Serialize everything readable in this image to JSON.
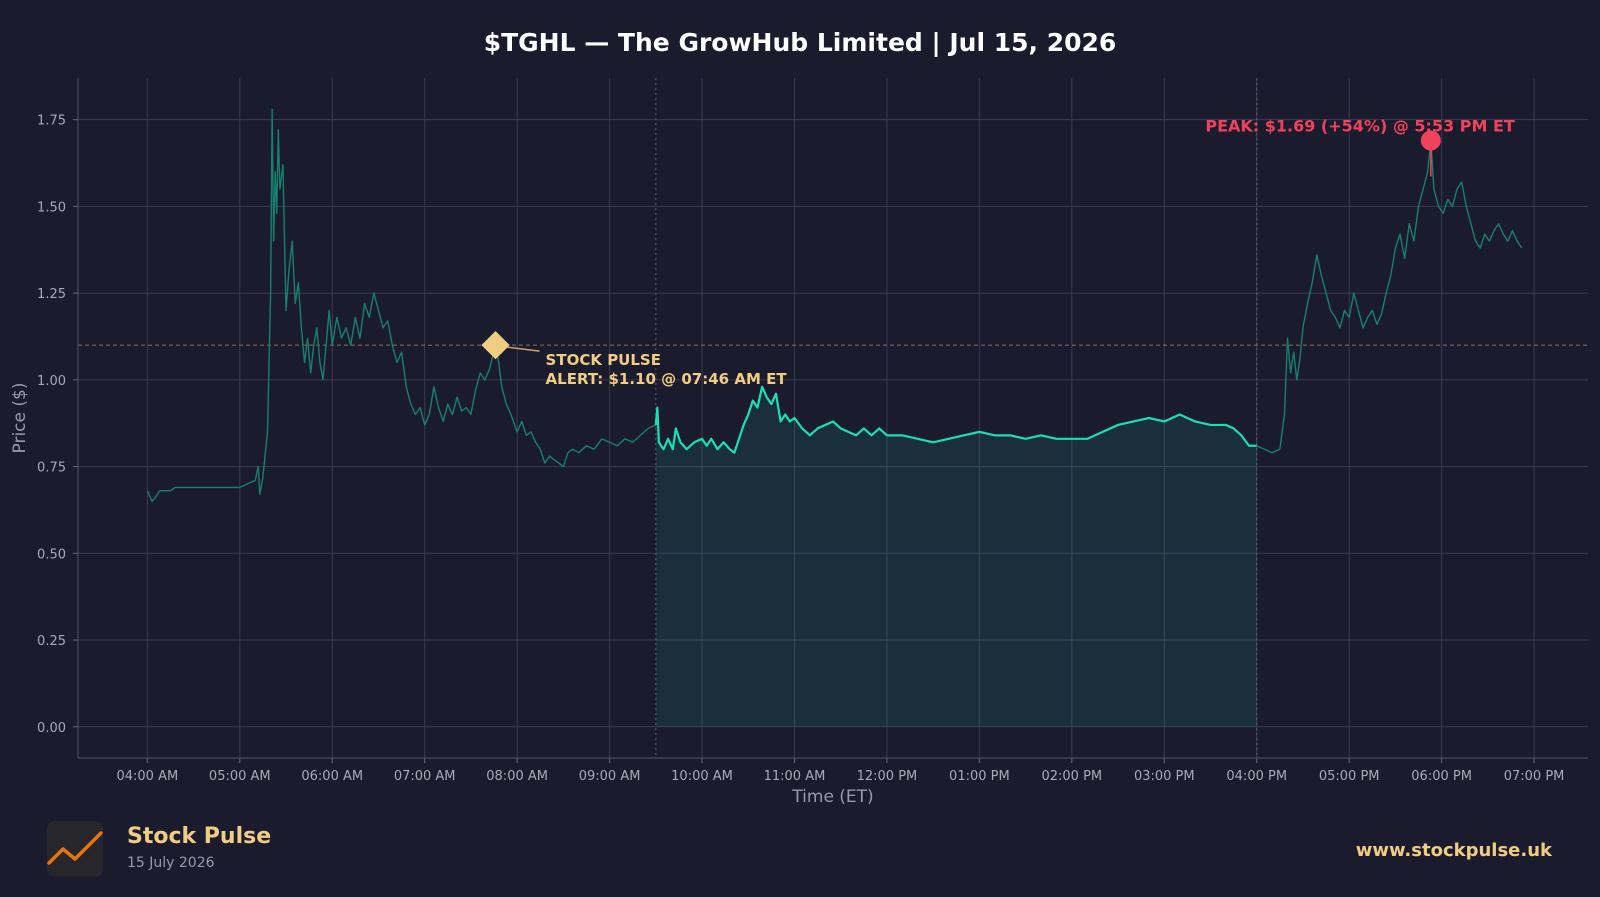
{
  "header": {
    "title": "$TGHL — The GrowHub Limited  |  Jul 15, 2026"
  },
  "footer": {
    "brand": "Stock Pulse",
    "date": "15 July 2026",
    "url": "www.stockpulse.uk",
    "logo_icon": "trend-line-icon"
  },
  "colors": {
    "background": "#1b1b2e",
    "series_regular": "#18e0b4",
    "series_extended": "#16806d",
    "alert": "#f1cd84",
    "peak": "#f0425a",
    "grid": "#3b3b50"
  },
  "chart_data": {
    "type": "line",
    "title": "$TGHL — The GrowHub Limited  |  Jul 15, 2026",
    "xlabel": "Time (ET)",
    "ylabel": "Price ($)",
    "xlim": [
      "03:15 AM",
      "07:35 PM"
    ],
    "ylim": [
      -0.09,
      1.87
    ],
    "grid": true,
    "x_ticks": [
      "04:00 AM",
      "05:00 AM",
      "06:00 AM",
      "07:00 AM",
      "08:00 AM",
      "09:00 AM",
      "10:00 AM",
      "11:00 AM",
      "12:00 PM",
      "01:00 PM",
      "02:00 PM",
      "03:00 PM",
      "04:00 PM",
      "05:00 PM",
      "06:00 PM",
      "07:00 PM"
    ],
    "y_ticks": [
      "0.00",
      "0.25",
      "0.50",
      "0.75",
      "1.00",
      "1.25",
      "1.50",
      "1.75"
    ],
    "regular_session": {
      "start": "09:30 AM",
      "end": "04:00 PM"
    },
    "reference_line": {
      "y": 1.1,
      "style": "dashed"
    },
    "series": [
      {
        "session": "pre-market",
        "points": [
          [
            "04:00 AM",
            0.68
          ],
          [
            "04:03 AM",
            0.65
          ],
          [
            "04:05 AM",
            0.66
          ],
          [
            "04:08 AM",
            0.68
          ],
          [
            "04:15 AM",
            0.68
          ],
          [
            "04:18 AM",
            0.69
          ],
          [
            "04:30 AM",
            0.69
          ],
          [
            "04:45 AM",
            0.69
          ],
          [
            "05:00 AM",
            0.69
          ],
          [
            "05:05 AM",
            0.7
          ],
          [
            "05:10 AM",
            0.71
          ],
          [
            "05:12 AM",
            0.75
          ],
          [
            "05:13 AM",
            0.67
          ],
          [
            "05:15 AM",
            0.72
          ],
          [
            "05:18 AM",
            0.85
          ],
          [
            "05:20 AM",
            1.25
          ],
          [
            "05:21 AM",
            1.78
          ],
          [
            "05:22 AM",
            1.4
          ],
          [
            "05:23 AM",
            1.6
          ],
          [
            "05:24 AM",
            1.48
          ],
          [
            "05:25 AM",
            1.72
          ],
          [
            "05:26 AM",
            1.55
          ],
          [
            "05:28 AM",
            1.62
          ],
          [
            "05:30 AM",
            1.2
          ],
          [
            "05:32 AM",
            1.32
          ],
          [
            "05:34 AM",
            1.4
          ],
          [
            "05:36 AM",
            1.22
          ],
          [
            "05:38 AM",
            1.28
          ],
          [
            "05:40 AM",
            1.15
          ],
          [
            "05:42 AM",
            1.05
          ],
          [
            "05:44 AM",
            1.12
          ],
          [
            "05:46 AM",
            1.02
          ],
          [
            "05:48 AM",
            1.1
          ],
          [
            "05:50 AM",
            1.15
          ],
          [
            "05:52 AM",
            1.05
          ],
          [
            "05:54 AM",
            1.0
          ],
          [
            "05:56 AM",
            1.1
          ],
          [
            "05:58 AM",
            1.2
          ],
          [
            "06:00 AM",
            1.1
          ],
          [
            "06:03 AM",
            1.18
          ],
          [
            "06:06 AM",
            1.12
          ],
          [
            "06:09 AM",
            1.15
          ],
          [
            "06:12 AM",
            1.1
          ],
          [
            "06:15 AM",
            1.18
          ],
          [
            "06:18 AM",
            1.12
          ],
          [
            "06:21 AM",
            1.22
          ],
          [
            "06:24 AM",
            1.18
          ],
          [
            "06:27 AM",
            1.25
          ],
          [
            "06:30 AM",
            1.2
          ],
          [
            "06:33 AM",
            1.15
          ],
          [
            "06:36 AM",
            1.17
          ],
          [
            "06:39 AM",
            1.1
          ],
          [
            "06:42 AM",
            1.05
          ],
          [
            "06:45 AM",
            1.08
          ],
          [
            "06:48 AM",
            0.98
          ],
          [
            "06:51 AM",
            0.93
          ],
          [
            "06:54 AM",
            0.9
          ],
          [
            "06:57 AM",
            0.92
          ],
          [
            "07:00 AM",
            0.87
          ],
          [
            "07:03 AM",
            0.9
          ],
          [
            "07:06 AM",
            0.98
          ],
          [
            "07:09 AM",
            0.92
          ],
          [
            "07:12 AM",
            0.88
          ],
          [
            "07:15 AM",
            0.93
          ],
          [
            "07:18 AM",
            0.9
          ],
          [
            "07:21 AM",
            0.95
          ],
          [
            "07:24 AM",
            0.91
          ],
          [
            "07:27 AM",
            0.92
          ],
          [
            "07:30 AM",
            0.9
          ],
          [
            "07:33 AM",
            0.97
          ],
          [
            "07:36 AM",
            1.02
          ],
          [
            "07:39 AM",
            1.0
          ],
          [
            "07:42 AM",
            1.03
          ],
          [
            "07:46 AM",
            1.1
          ],
          [
            "07:48 AM",
            1.05
          ],
          [
            "07:50 AM",
            0.98
          ],
          [
            "07:53 AM",
            0.93
          ],
          [
            "07:56 AM",
            0.9
          ],
          [
            "08:00 AM",
            0.85
          ],
          [
            "08:03 AM",
            0.88
          ],
          [
            "08:06 AM",
            0.84
          ],
          [
            "08:09 AM",
            0.85
          ],
          [
            "08:12 AM",
            0.82
          ],
          [
            "08:15 AM",
            0.8
          ],
          [
            "08:18 AM",
            0.76
          ],
          [
            "08:21 AM",
            0.78
          ],
          [
            "08:24 AM",
            0.77
          ],
          [
            "08:27 AM",
            0.76
          ],
          [
            "08:30 AM",
            0.75
          ],
          [
            "08:33 AM",
            0.79
          ],
          [
            "08:36 AM",
            0.8
          ],
          [
            "08:40 AM",
            0.79
          ],
          [
            "08:45 AM",
            0.81
          ],
          [
            "08:50 AM",
            0.8
          ],
          [
            "08:55 AM",
            0.83
          ],
          [
            "09:00 AM",
            0.82
          ],
          [
            "09:05 AM",
            0.81
          ],
          [
            "09:10 AM",
            0.83
          ],
          [
            "09:15 AM",
            0.82
          ],
          [
            "09:20 AM",
            0.84
          ],
          [
            "09:25 AM",
            0.86
          ],
          [
            "09:30 AM",
            0.87
          ]
        ]
      },
      {
        "session": "regular",
        "points": [
          [
            "09:30 AM",
            0.87
          ],
          [
            "09:31 AM",
            0.92
          ],
          [
            "09:32 AM",
            0.82
          ],
          [
            "09:35 AM",
            0.8
          ],
          [
            "09:38 AM",
            0.83
          ],
          [
            "09:41 AM",
            0.8
          ],
          [
            "09:43 AM",
            0.86
          ],
          [
            "09:46 AM",
            0.82
          ],
          [
            "09:50 AM",
            0.8
          ],
          [
            "09:55 AM",
            0.82
          ],
          [
            "10:00 AM",
            0.83
          ],
          [
            "10:03 AM",
            0.81
          ],
          [
            "10:06 AM",
            0.83
          ],
          [
            "10:10 AM",
            0.8
          ],
          [
            "10:14 AM",
            0.82
          ],
          [
            "10:18 AM",
            0.8
          ],
          [
            "10:21 AM",
            0.79
          ],
          [
            "10:24 AM",
            0.83
          ],
          [
            "10:27 AM",
            0.87
          ],
          [
            "10:30 AM",
            0.9
          ],
          [
            "10:33 AM",
            0.94
          ],
          [
            "10:36 AM",
            0.92
          ],
          [
            "10:39 AM",
            0.98
          ],
          [
            "10:42 AM",
            0.95
          ],
          [
            "10:45 AM",
            0.93
          ],
          [
            "10:48 AM",
            0.96
          ],
          [
            "10:51 AM",
            0.88
          ],
          [
            "10:54 AM",
            0.9
          ],
          [
            "10:57 AM",
            0.88
          ],
          [
            "11:00 AM",
            0.89
          ],
          [
            "11:05 AM",
            0.86
          ],
          [
            "11:10 AM",
            0.84
          ],
          [
            "11:15 AM",
            0.86
          ],
          [
            "11:20 AM",
            0.87
          ],
          [
            "11:25 AM",
            0.88
          ],
          [
            "11:30 AM",
            0.86
          ],
          [
            "11:35 AM",
            0.85
          ],
          [
            "11:40 AM",
            0.84
          ],
          [
            "11:45 AM",
            0.86
          ],
          [
            "11:50 AM",
            0.84
          ],
          [
            "11:55 AM",
            0.86
          ],
          [
            "12:00 PM",
            0.84
          ],
          [
            "12:10 PM",
            0.84
          ],
          [
            "12:20 PM",
            0.83
          ],
          [
            "12:30 PM",
            0.82
          ],
          [
            "12:40 PM",
            0.83
          ],
          [
            "12:50 PM",
            0.84
          ],
          [
            "01:00 PM",
            0.85
          ],
          [
            "01:10 PM",
            0.84
          ],
          [
            "01:20 PM",
            0.84
          ],
          [
            "01:30 PM",
            0.83
          ],
          [
            "01:40 PM",
            0.84
          ],
          [
            "01:50 PM",
            0.83
          ],
          [
            "02:00 PM",
            0.83
          ],
          [
            "02:10 PM",
            0.83
          ],
          [
            "02:20 PM",
            0.85
          ],
          [
            "02:30 PM",
            0.87
          ],
          [
            "02:40 PM",
            0.88
          ],
          [
            "02:50 PM",
            0.89
          ],
          [
            "03:00 PM",
            0.88
          ],
          [
            "03:10 PM",
            0.9
          ],
          [
            "03:20 PM",
            0.88
          ],
          [
            "03:30 PM",
            0.87
          ],
          [
            "03:40 PM",
            0.87
          ],
          [
            "03:45 PM",
            0.86
          ],
          [
            "03:50 PM",
            0.84
          ],
          [
            "03:55 PM",
            0.81
          ],
          [
            "04:00 PM",
            0.81
          ]
        ]
      },
      {
        "session": "after-hours",
        "points": [
          [
            "04:00 PM",
            0.81
          ],
          [
            "04:05 PM",
            0.8
          ],
          [
            "04:10 PM",
            0.79
          ],
          [
            "04:15 PM",
            0.8
          ],
          [
            "04:18 PM",
            0.9
          ],
          [
            "04:20 PM",
            1.12
          ],
          [
            "04:22 PM",
            1.02
          ],
          [
            "04:24 PM",
            1.08
          ],
          [
            "04:26 PM",
            1.0
          ],
          [
            "04:28 PM",
            1.06
          ],
          [
            "04:30 PM",
            1.15
          ],
          [
            "04:33 PM",
            1.22
          ],
          [
            "04:36 PM",
            1.28
          ],
          [
            "04:39 PM",
            1.36
          ],
          [
            "04:42 PM",
            1.3
          ],
          [
            "04:45 PM",
            1.25
          ],
          [
            "04:48 PM",
            1.2
          ],
          [
            "04:51 PM",
            1.18
          ],
          [
            "04:54 PM",
            1.15
          ],
          [
            "04:57 PM",
            1.2
          ],
          [
            "05:00 PM",
            1.18
          ],
          [
            "05:03 PM",
            1.25
          ],
          [
            "05:06 PM",
            1.2
          ],
          [
            "05:09 PM",
            1.15
          ],
          [
            "05:12 PM",
            1.18
          ],
          [
            "05:15 PM",
            1.2
          ],
          [
            "05:18 PM",
            1.16
          ],
          [
            "05:21 PM",
            1.19
          ],
          [
            "05:24 PM",
            1.25
          ],
          [
            "05:27 PM",
            1.3
          ],
          [
            "05:30 PM",
            1.38
          ],
          [
            "05:33 PM",
            1.42
          ],
          [
            "05:36 PM",
            1.35
          ],
          [
            "05:39 PM",
            1.45
          ],
          [
            "05:42 PM",
            1.4
          ],
          [
            "05:45 PM",
            1.5
          ],
          [
            "05:48 PM",
            1.55
          ],
          [
            "05:51 PM",
            1.6
          ],
          [
            "05:53 PM",
            1.69
          ],
          [
            "05:55 PM",
            1.55
          ],
          [
            "05:58 PM",
            1.5
          ],
          [
            "06:01 PM",
            1.48
          ],
          [
            "06:04 PM",
            1.52
          ],
          [
            "06:07 PM",
            1.5
          ],
          [
            "06:10 PM",
            1.55
          ],
          [
            "06:13 PM",
            1.57
          ],
          [
            "06:16 PM",
            1.5
          ],
          [
            "06:19 PM",
            1.45
          ],
          [
            "06:22 PM",
            1.4
          ],
          [
            "06:25 PM",
            1.38
          ],
          [
            "06:28 PM",
            1.42
          ],
          [
            "06:31 PM",
            1.4
          ],
          [
            "06:34 PM",
            1.43
          ],
          [
            "06:37 PM",
            1.45
          ],
          [
            "06:40 PM",
            1.42
          ],
          [
            "06:43 PM",
            1.4
          ],
          [
            "06:46 PM",
            1.43
          ],
          [
            "06:49 PM",
            1.4
          ],
          [
            "06:52 PM",
            1.38
          ]
        ]
      }
    ],
    "annotations": [
      {
        "kind": "alert",
        "x": "07:46 AM",
        "y": 1.1,
        "text_line1": "STOCK PULSE",
        "text_line2": "ALERT: $1.10 @ 07:46 AM ET"
      },
      {
        "kind": "peak",
        "x": "05:53 PM",
        "y": 1.69,
        "text": "PEAK: $1.69 (+54%) @ 5:53 PM ET"
      }
    ]
  }
}
